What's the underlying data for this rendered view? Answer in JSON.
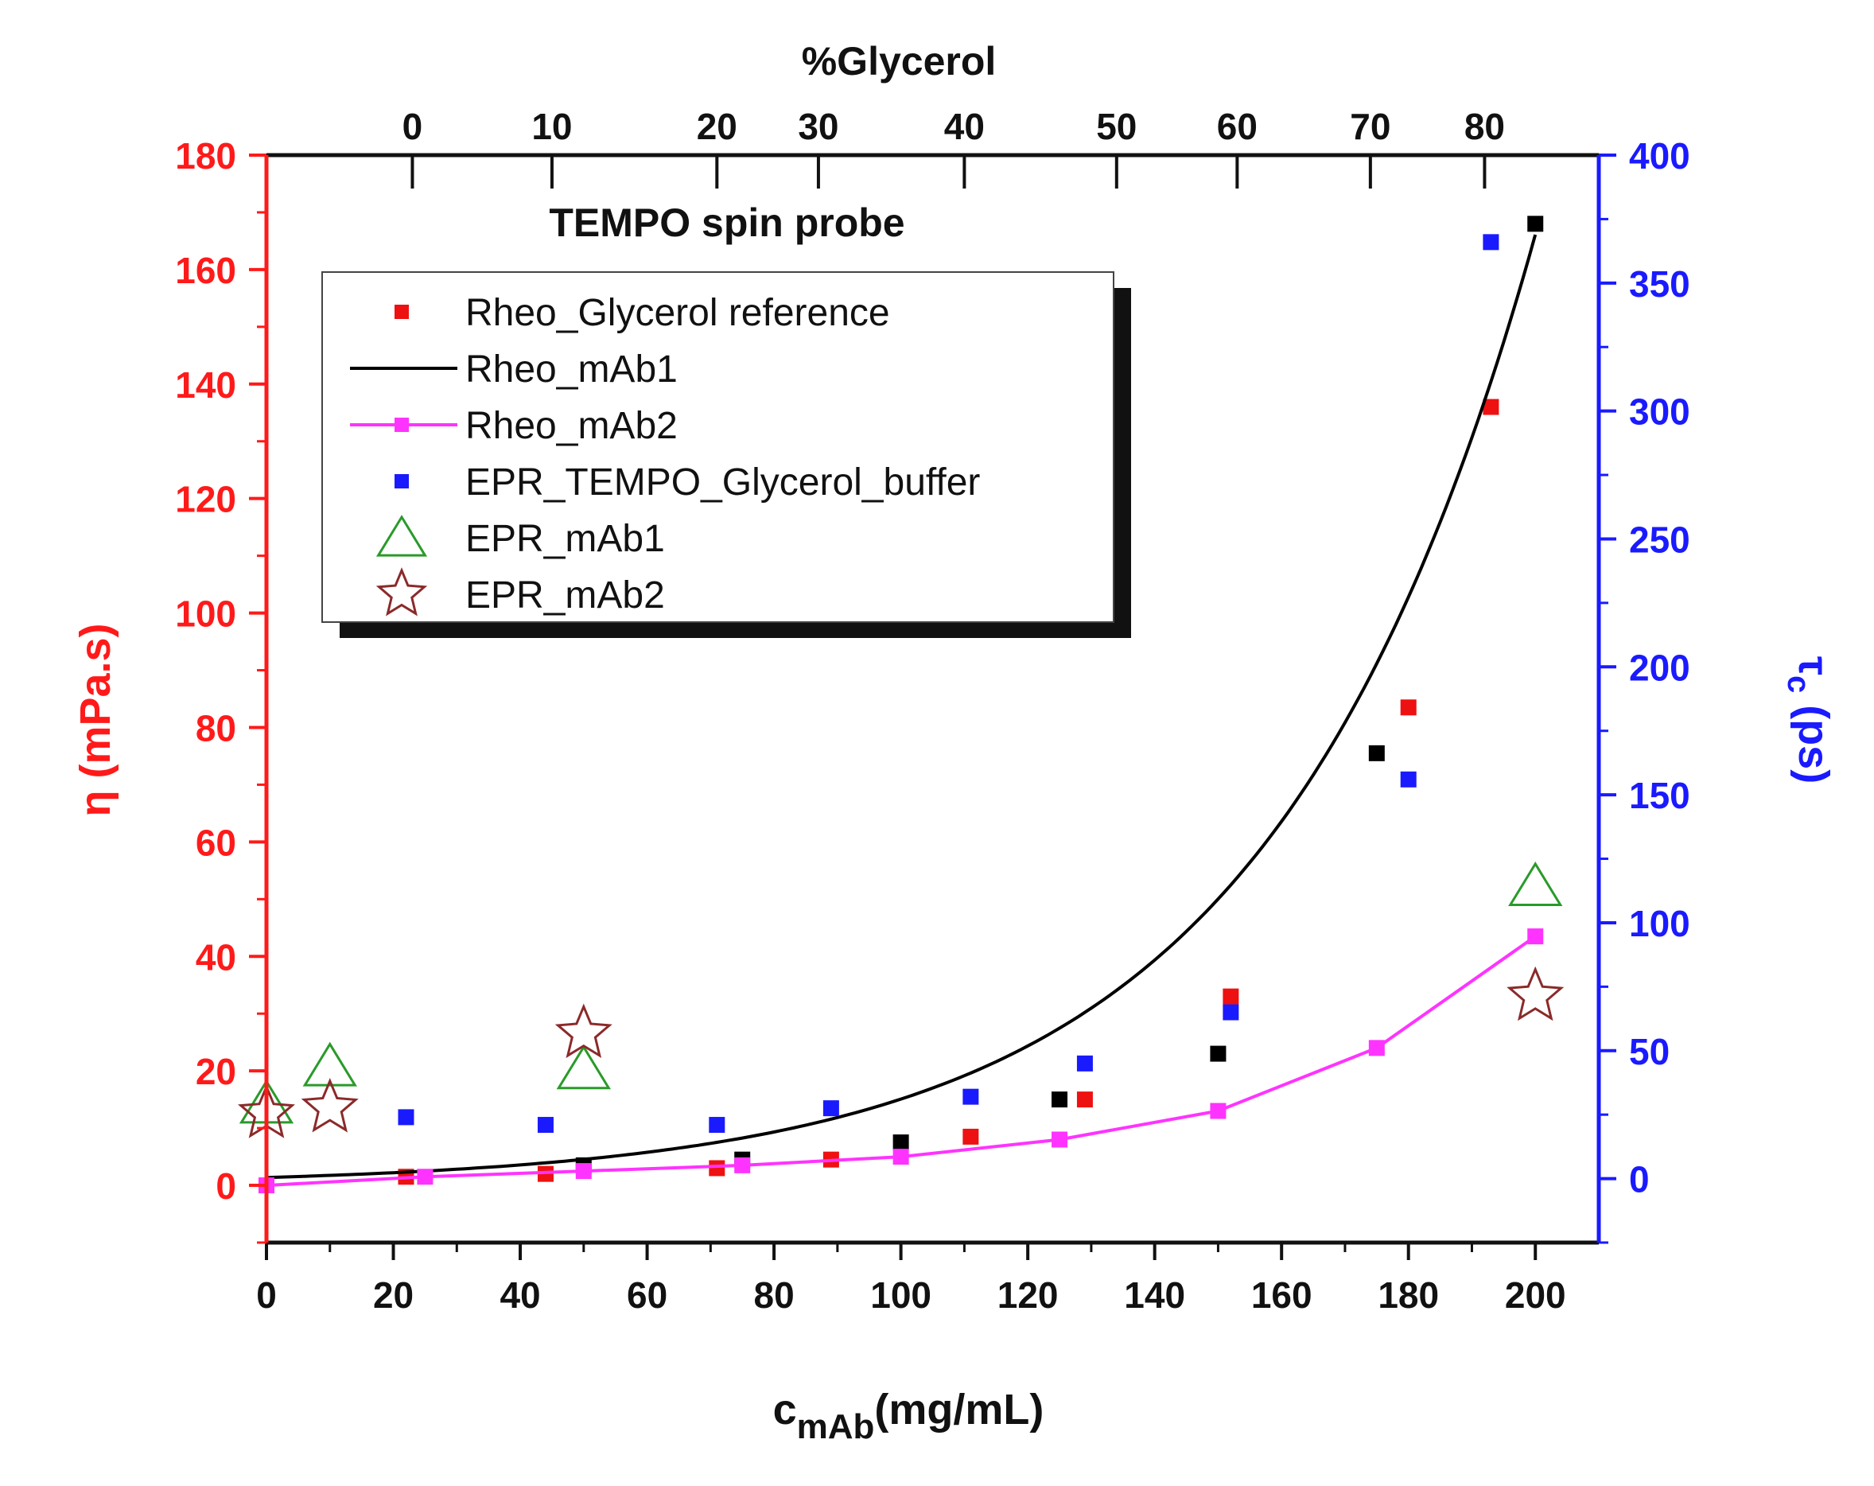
{
  "chart_data": {
    "type": "scatter",
    "title": "TEMPO spin probe",
    "top_axis": {
      "label": "%Glycerol",
      "ticks": [
        {
          "label": "0",
          "at_x": 23
        },
        {
          "label": "10",
          "at_x": 45
        },
        {
          "label": "20",
          "at_x": 71
        },
        {
          "label": "30",
          "at_x": 87
        },
        {
          "label": "40",
          "at_x": 110
        },
        {
          "label": "50",
          "at_x": 134
        },
        {
          "label": "60",
          "at_x": 153
        },
        {
          "label": "70",
          "at_x": 174
        },
        {
          "label": "80",
          "at_x": 192
        }
      ]
    },
    "x_axis": {
      "label_main": "c",
      "label_sub": "mAb",
      "label_unit": "(mg/mL)",
      "min": 0,
      "max": 210,
      "ticks": [
        "0",
        "20",
        "40",
        "60",
        "80",
        "100",
        "120",
        "140",
        "160",
        "180",
        "200"
      ]
    },
    "y_left": {
      "label": "η (mPa.s)",
      "color": "#ff1a1a",
      "min": -10,
      "max": 180,
      "ticks": [
        "0",
        "20",
        "40",
        "60",
        "80",
        "100",
        "120",
        "140",
        "160",
        "180"
      ]
    },
    "y_right": {
      "label_main": "τ",
      "label_sub": "c",
      "label_unit": " (ps)",
      "color": "#1a1aff",
      "min": -25,
      "max": 400,
      "ticks": [
        "0",
        "50",
        "100",
        "150",
        "200",
        "250",
        "300",
        "350",
        "400"
      ]
    },
    "series": [
      {
        "name": "Rheo_Glycerol reference",
        "marker": "square",
        "color": "#ee1111",
        "axis": "left",
        "points": [
          [
            22,
            1.5
          ],
          [
            44,
            2
          ],
          [
            71,
            3
          ],
          [
            89,
            4.5
          ],
          [
            111,
            8.5
          ],
          [
            129,
            15
          ],
          [
            152,
            33
          ],
          [
            180,
            83.5
          ],
          [
            193,
            136
          ]
        ]
      },
      {
        "name": "Rheo_mAb1 data",
        "marker": "square",
        "color": "#000000",
        "axis": "left",
        "in_legend": false,
        "points": [
          [
            50,
            3.5
          ],
          [
            75,
            4.5
          ],
          [
            100,
            7.5
          ],
          [
            125,
            15
          ],
          [
            150,
            23
          ],
          [
            175,
            75.5
          ],
          [
            200,
            168
          ]
        ]
      },
      {
        "name": "Rheo_mAb1",
        "marker": "line",
        "color": "#000000",
        "axis": "left",
        "fit": {
          "a": 1.367,
          "b": 0.024,
          "c": 0.08
        },
        "fit_range": [
          0,
          200
        ]
      },
      {
        "name": "Rheo_mAb2",
        "marker": "square-line",
        "color": "#ff33ff",
        "axis": "left",
        "points": [
          [
            0,
            0
          ],
          [
            25,
            1.5
          ],
          [
            50,
            2.5
          ],
          [
            75,
            3.5
          ],
          [
            100,
            5
          ],
          [
            125,
            8
          ],
          [
            150,
            13
          ],
          [
            175,
            24
          ],
          [
            200,
            43.5
          ]
        ]
      },
      {
        "name": "EPR_TEMPO_Glycerol_buffer",
        "marker": "square",
        "color": "#1a1aff",
        "axis": "right",
        "points": [
          [
            22,
            24
          ],
          [
            44,
            21
          ],
          [
            71,
            21
          ],
          [
            89,
            27.5
          ],
          [
            111,
            32
          ],
          [
            129,
            45
          ],
          [
            152,
            65
          ],
          [
            180,
            156
          ],
          [
            193,
            366
          ]
        ]
      },
      {
        "name": "EPR_mAb1",
        "marker": "triangle",
        "color": "#2a9a2a",
        "axis": "left",
        "points": [
          [
            0,
            14
          ],
          [
            10,
            20.5
          ],
          [
            50,
            20
          ],
          [
            200,
            52
          ]
        ]
      },
      {
        "name": "EPR_mAb2",
        "marker": "star",
        "color": "#8b2a2a",
        "axis": "left",
        "points": [
          [
            0,
            12.5
          ],
          [
            10,
            13.5
          ],
          [
            50,
            26.5
          ],
          [
            200,
            33
          ]
        ]
      }
    ]
  }
}
